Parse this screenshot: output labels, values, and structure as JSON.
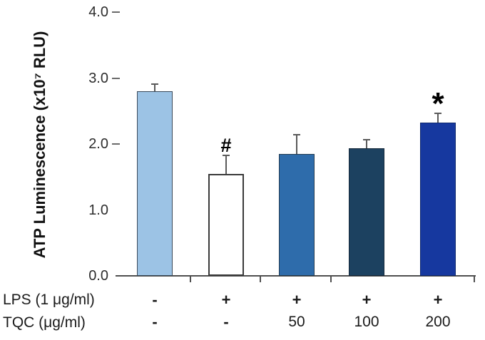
{
  "figure": {
    "background": "#ffffff",
    "axis_color": "#4f4f4f",
    "error_bar_color": "#5a5a5a",
    "text_color": "#1f1f1f"
  },
  "chart_data": {
    "type": "bar",
    "title": "",
    "xlabel": "",
    "ylabel": "ATP Luminescence (x10⁷ RLU)",
    "ylim": [
      0.0,
      4.0
    ],
    "y_tick_labels": [
      "4.0",
      "3.0",
      "2.0",
      "1.0",
      "0.0"
    ],
    "grid": false,
    "legend": "none",
    "error_bars": true,
    "bars": [
      {
        "value": 2.8,
        "error": 0.11,
        "color": "#9cc3e5",
        "edge_color": "#3a4a5a",
        "significance": ""
      },
      {
        "value": 1.55,
        "error": 0.28,
        "color": "#ffffff",
        "edge_color": "#3a3a3a",
        "significance": "#"
      },
      {
        "value": 1.85,
        "error": 0.29,
        "color": "#2e6cab",
        "edge_color": "#233c52",
        "significance": ""
      },
      {
        "value": 1.93,
        "error": 0.14,
        "color": "#1c4160",
        "edge_color": "#16293a",
        "significance": ""
      },
      {
        "value": 2.32,
        "error": 0.15,
        "color": "#16389f",
        "edge_color": "#102a6e",
        "significance": "*"
      }
    ],
    "condition_rows": [
      {
        "label": "LPS (1 μg/ml)",
        "values": [
          "-",
          "+",
          "+",
          "+",
          "+"
        ]
      },
      {
        "label": "TQC (μg/ml)",
        "values": [
          "-",
          "-",
          "50",
          "100",
          "200"
        ]
      }
    ]
  }
}
